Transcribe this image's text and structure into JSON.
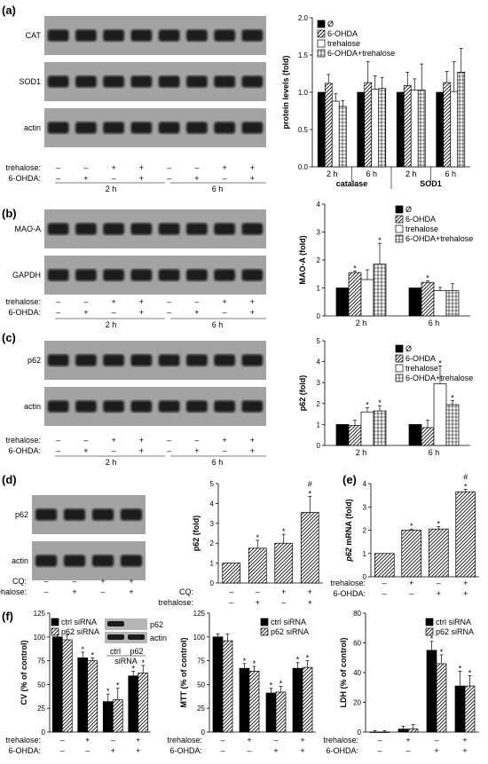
{
  "colors": {
    "black": "#000000",
    "white": "#ffffff",
    "band": "#1a1a1a",
    "blot_bg": "#9a9a9a"
  },
  "fill_patterns": [
    "solid-black",
    "diagonal-hatch",
    "white",
    "grid-hatch"
  ],
  "panels": {
    "a": {
      "letter": "(a)",
      "blots": [
        "CAT",
        "SOD1",
        "actin"
      ],
      "treat_labels": [
        "trehalose:",
        "6-OHDA:"
      ],
      "trehalose": [
        "–",
        "–",
        "+",
        "+",
        "–",
        "–",
        "+",
        "+"
      ],
      "ohda": [
        "–",
        "+",
        "–",
        "+",
        "–",
        "+",
        "–",
        "+"
      ],
      "time_labels": [
        "2 h",
        "6 h"
      ],
      "chart_data": {
        "type": "bar",
        "ylabel": "protein levels (fold)",
        "ylim": [
          0,
          2.0
        ],
        "yticks": [
          "0.0",
          "0.5",
          "1.0",
          "1.5",
          "2.0"
        ],
        "groups": [
          "2 h",
          "6 h",
          "2 h",
          "6 h"
        ],
        "group_labels": [
          "catalase",
          "SOD1"
        ],
        "legend": [
          "Ø",
          "6-OHDA",
          "trehalose",
          "6-OHDA+trehalose"
        ],
        "values": [
          [
            1.0,
            1.12,
            0.88,
            0.81
          ],
          [
            1.0,
            1.13,
            1.04,
            1.05
          ],
          [
            1.0,
            1.09,
            1.03,
            1.03
          ],
          [
            1.0,
            1.13,
            1.01,
            1.27
          ]
        ],
        "errors": [
          [
            0,
            0.12,
            0.1,
            0.08
          ],
          [
            0,
            0.28,
            0.18,
            0.15
          ],
          [
            0,
            0.18,
            0.15,
            0.35
          ],
          [
            0,
            0.15,
            0.4,
            0.32
          ]
        ],
        "stars": [
          [
            0,
            0,
            0,
            0
          ],
          [
            0,
            0,
            0,
            0
          ],
          [
            0,
            0,
            0,
            0
          ],
          [
            0,
            0,
            0,
            0
          ]
        ]
      }
    },
    "b": {
      "letter": "(b)",
      "blots": [
        "MAO-A",
        "GAPDH"
      ],
      "treat_labels": [
        "trehalose:",
        "6-OHDA:"
      ],
      "trehalose": [
        "–",
        "–",
        "+",
        "+",
        "–",
        "–",
        "+",
        "+"
      ],
      "ohda": [
        "–",
        "+",
        "–",
        "+",
        "–",
        "+",
        "–",
        "+"
      ],
      "time_labels": [
        "2 h",
        "6 h"
      ],
      "chart_data": {
        "type": "bar",
        "ylabel": "MAO-A (fold)",
        "ylim": [
          0,
          4
        ],
        "yticks": [
          "0",
          "1",
          "2",
          "3",
          "4"
        ],
        "groups": [
          "2 h",
          "6 h"
        ],
        "legend": [
          "Ø",
          "6-OHDA",
          "trehalose",
          "6-OHDA+trehalose"
        ],
        "values": [
          [
            1.0,
            1.55,
            1.3,
            1.85
          ],
          [
            1.0,
            1.2,
            0.9,
            0.9
          ]
        ],
        "errors": [
          [
            0,
            0.05,
            0.35,
            0.75
          ],
          [
            0,
            0.05,
            0.12,
            0.25
          ]
        ],
        "stars": [
          [
            0,
            1,
            0,
            1
          ],
          [
            0,
            1,
            0,
            0
          ]
        ]
      }
    },
    "c": {
      "letter": "(c)",
      "blots": [
        "p62",
        "actin"
      ],
      "treat_labels": [
        "trehalose:",
        "6-OHDA:"
      ],
      "trehalose": [
        "–",
        "–",
        "+",
        "+",
        "–",
        "–",
        "+",
        "+"
      ],
      "ohda": [
        "–",
        "+",
        "–",
        "+",
        "–",
        "+",
        "–",
        "+"
      ],
      "time_labels": [
        "2 h",
        "6 h"
      ],
      "chart_data": {
        "type": "bar",
        "ylabel": "p62 (fold)",
        "ylim": [
          0,
          5
        ],
        "yticks": [
          "0",
          "1",
          "2",
          "3",
          "4",
          "5"
        ],
        "groups": [
          "2 h",
          "6 h"
        ],
        "legend": [
          "Ø",
          "6-OHDA",
          "trehalose",
          "6-OHDA+trehalose"
        ],
        "values": [
          [
            1.0,
            0.95,
            1.6,
            1.65
          ],
          [
            1.0,
            0.85,
            2.95,
            1.95
          ]
        ],
        "errors": [
          [
            0,
            0.25,
            0.2,
            0.25
          ],
          [
            0,
            0.35,
            0.85,
            0.2
          ]
        ],
        "stars": [
          [
            0,
            0,
            1,
            1
          ],
          [
            0,
            0,
            1,
            1
          ]
        ]
      }
    },
    "d": {
      "letter": "(d)",
      "blots": [
        "p62",
        "actin"
      ],
      "treat_labels": [
        "CQ:",
        "trehalose:"
      ],
      "row1": [
        "–",
        "–",
        "+",
        "+"
      ],
      "row2": [
        "–",
        "+",
        "–",
        "+"
      ],
      "chart_data": {
        "type": "bar",
        "ylabel": "p62 (fold)",
        "ylim": [
          0,
          5
        ],
        "yticks": [
          "0",
          "1",
          "2",
          "3",
          "4",
          "5"
        ],
        "treat_labels": [
          "CQ:",
          "trehalose:"
        ],
        "row1": [
          "–",
          "–",
          "+",
          "+"
        ],
        "row2": [
          "–",
          "+",
          "–",
          "+"
        ],
        "values": [
          1.0,
          1.75,
          2.0,
          3.55
        ],
        "errors": [
          0,
          0.4,
          0.45,
          0.8
        ],
        "marks": [
          "",
          "*",
          "*",
          "#\n*"
        ]
      }
    },
    "e": {
      "letter": "(e)",
      "chart_data": {
        "type": "bar",
        "ylabel_italic": "p62",
        "ylabel": " mRNA (fold)",
        "ylim": [
          0,
          4
        ],
        "yticks": [
          "0",
          "1",
          "2",
          "3",
          "4"
        ],
        "treat_labels": [
          "trehalose:",
          "6-OHDA:"
        ],
        "row1": [
          "–",
          "+",
          "–",
          "+"
        ],
        "row2": [
          "–",
          "–",
          "+",
          "+"
        ],
        "values": [
          1.0,
          2.0,
          2.05,
          3.65
        ],
        "errors": [
          0,
          0.05,
          0.1,
          0.1
        ],
        "marks": [
          "",
          "*",
          "*",
          "#\n*"
        ]
      }
    },
    "f": {
      "letter": "(f)",
      "inset": {
        "blots": [
          "p62",
          "actin"
        ],
        "lanes": [
          "ctrl",
          "p62"
        ],
        "caption": "siRNA"
      },
      "legend": [
        "ctrl siRNA",
        "p62 siRNA"
      ],
      "treat_labels": [
        "trehalose:",
        "6-OHDA:"
      ],
      "row1": [
        "–",
        "+",
        "–",
        "+"
      ],
      "row2": [
        "–",
        "–",
        "+",
        "+"
      ],
      "chart_data": [
        {
          "type": "bar",
          "ylabel": "CV (% of control)",
          "ylim": [
            0,
            125
          ],
          "yticks": [
            "0",
            "25",
            "50",
            "75",
            "100",
            "125"
          ],
          "values": [
            [
              100,
              97
            ],
            [
              78,
              75
            ],
            [
              32,
              34
            ],
            [
              59,
              62
            ]
          ],
          "errors": [
            [
              3,
              5
            ],
            [
              6,
              3
            ],
            [
              8,
              12
            ],
            [
              5,
              8
            ]
          ],
          "stars": [
            [
              0,
              0
            ],
            [
              1,
              1
            ],
            [
              1,
              1
            ],
            [
              1,
              1
            ]
          ]
        },
        {
          "type": "bar",
          "ylabel": "MTT (% of control)",
          "ylim": [
            0,
            125
          ],
          "yticks": [
            "0",
            "25",
            "50",
            "75",
            "100",
            "125"
          ],
          "values": [
            [
              100,
              96
            ],
            [
              67,
              64
            ],
            [
              41,
              42
            ],
            [
              67,
              68
            ]
          ],
          "errors": [
            [
              3,
              7
            ],
            [
              5,
              5
            ],
            [
              5,
              6
            ],
            [
              6,
              7
            ]
          ],
          "stars": [
            [
              0,
              0
            ],
            [
              1,
              1
            ],
            [
              1,
              1
            ],
            [
              1,
              1
            ]
          ]
        },
        {
          "type": "bar",
          "ylabel": "LDH (% of control)",
          "ylim": [
            0,
            80
          ],
          "yticks": [
            "0",
            "20",
            "40",
            "60",
            "80"
          ],
          "values": [
            [
              0,
              0
            ],
            [
              2,
              2
            ],
            [
              55,
              46
            ],
            [
              31,
              31
            ]
          ],
          "errors": [
            [
              1,
              1
            ],
            [
              2,
              3
            ],
            [
              6,
              6
            ],
            [
              10,
              7
            ]
          ],
          "stars": [
            [
              0,
              0
            ],
            [
              0,
              0
            ],
            [
              1,
              1
            ],
            [
              1,
              1
            ]
          ]
        }
      ]
    }
  }
}
